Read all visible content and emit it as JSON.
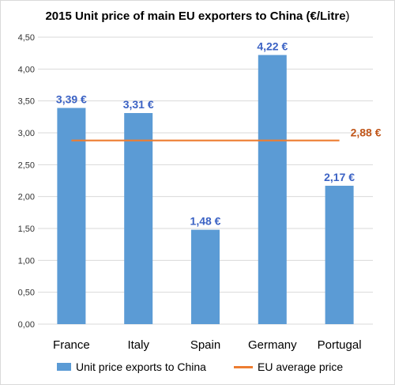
{
  "title_main": "2015 Unit price of main EU exporters to China (€/Litre",
  "title_end": ")",
  "colors": {
    "bar": "#5b9bd5",
    "line": "#ed7d31",
    "bar_label": "#3b62c4",
    "line_label": "#c0561a",
    "grid": "#d9d9d9"
  },
  "chart_data": {
    "type": "bar",
    "categories": [
      "France",
      "Italy",
      "Spain",
      "Germany",
      "Portugal"
    ],
    "series": [
      {
        "name": "Unit price exports to China",
        "type": "bar",
        "values": [
          3.39,
          3.31,
          1.48,
          4.22,
          2.17
        ],
        "labels": [
          "3,39 €",
          "3,31 €",
          "1,48 €",
          "4,22 €",
          "2,17 €"
        ]
      },
      {
        "name": "EU average price",
        "type": "line",
        "values": [
          2.88,
          2.88,
          2.88,
          2.88,
          2.88
        ],
        "label": "2,88 €"
      }
    ],
    "ylim": [
      0,
      4.5
    ],
    "yticks": [
      0,
      0.5,
      1,
      1.5,
      2,
      2.5,
      3,
      3.5,
      4,
      4.5
    ],
    "ytick_labels": [
      "0,00",
      "0,50",
      "1,00",
      "1,50",
      "2,00",
      "2,50",
      "3,00",
      "3,50",
      "4,00",
      "4,50"
    ],
    "grid": true,
    "legend_position": "bottom"
  }
}
